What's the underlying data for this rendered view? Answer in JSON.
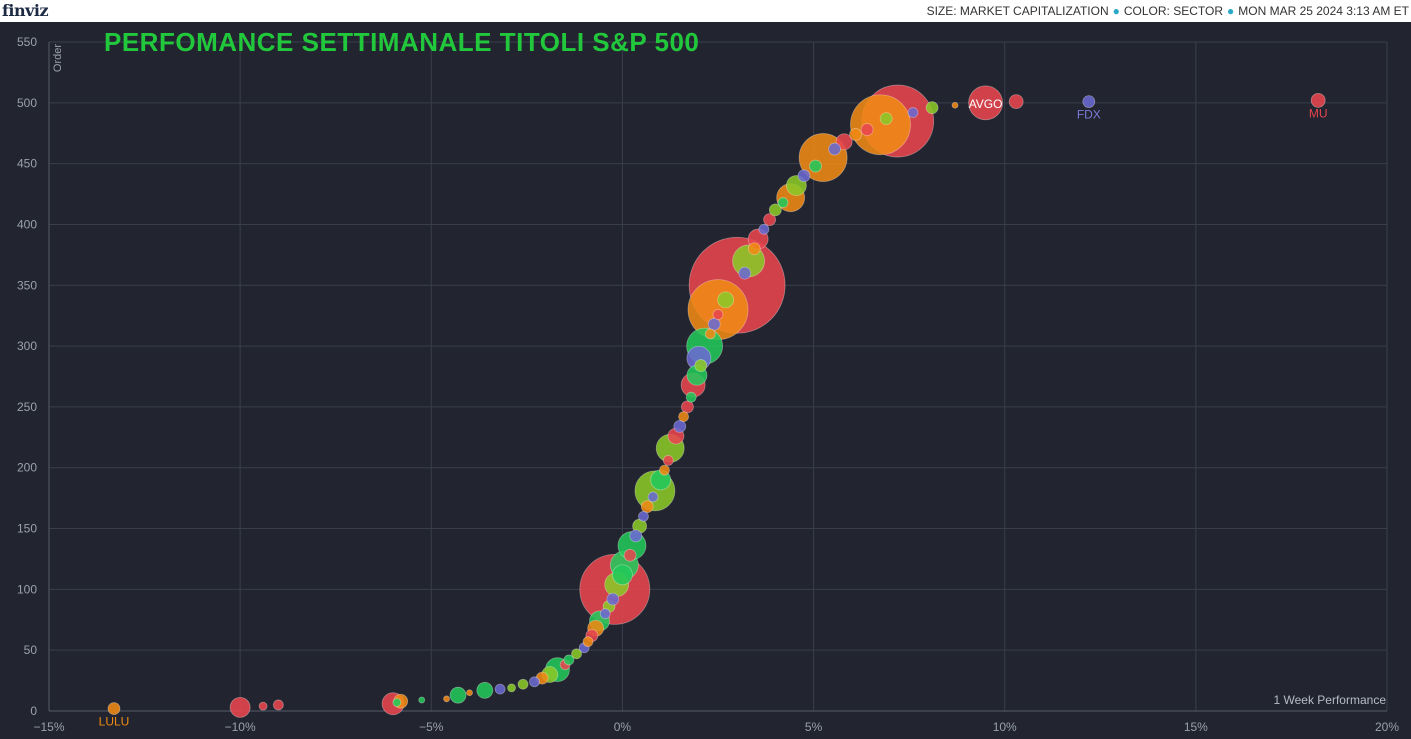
{
  "header": {
    "logo": "finviz",
    "size_label": "SIZE: MARKET CAPITALIZATION",
    "color_label": "COLOR: SECTOR",
    "timestamp": "MON MAR 25 2024 3:13 AM ET"
  },
  "colors": {
    "background": "#22252f",
    "grid": "#3a3e4c",
    "title": "#22c83c",
    "technology": "#e8454f",
    "consumer": "#f08a14",
    "industrials": "#6a6ad2",
    "healthcare": "#22c85a",
    "financial": "#8ac828"
  },
  "chart_data": {
    "type": "scatter",
    "title": "PERFOMANCE SETTIMANALE TITOLI S&P 500",
    "xlabel": "1 Week Performance",
    "ylabel": "Order",
    "xlim": [
      -15,
      20
    ],
    "ylim": [
      0,
      550
    ],
    "xticks": [
      "−15%",
      "−10%",
      "−5%",
      "0%",
      "5%",
      "10%",
      "15%",
      "20%"
    ],
    "yticks": [
      "0",
      "50",
      "100",
      "150",
      "200",
      "250",
      "300",
      "350",
      "400",
      "450",
      "500",
      "550"
    ],
    "grid": true,
    "labeled_points": [
      {
        "ticker": "LULU",
        "x": -13.3,
        "y": 2
      },
      {
        "ticker": "AVGO",
        "x": 9.5,
        "y": 500
      },
      {
        "ticker": "FDX",
        "x": 12.2,
        "y": 501
      },
      {
        "ticker": "MU",
        "x": 18.2,
        "y": 502
      }
    ],
    "points": [
      {
        "x": -13.3,
        "y": 2,
        "s": 6,
        "c": "consumer"
      },
      {
        "x": -10.0,
        "y": 3,
        "s": 10,
        "c": "technology"
      },
      {
        "x": -9.4,
        "y": 4,
        "s": 4,
        "c": "technology"
      },
      {
        "x": -9.0,
        "y": 5,
        "s": 5,
        "c": "technology"
      },
      {
        "x": -6.0,
        "y": 6,
        "s": 11,
        "c": "technology"
      },
      {
        "x": -5.8,
        "y": 8,
        "s": 7,
        "c": "consumer"
      },
      {
        "x": -5.9,
        "y": 7,
        "s": 4,
        "c": "healthcare"
      },
      {
        "x": -5.25,
        "y": 9,
        "s": 3,
        "c": "healthcare"
      },
      {
        "x": -4.6,
        "y": 10,
        "s": 3,
        "c": "consumer"
      },
      {
        "x": -4.3,
        "y": 13,
        "s": 8,
        "c": "healthcare"
      },
      {
        "x": -4.0,
        "y": 15,
        "s": 3,
        "c": "consumer"
      },
      {
        "x": -3.6,
        "y": 17,
        "s": 8,
        "c": "healthcare"
      },
      {
        "x": -3.2,
        "y": 18,
        "s": 5,
        "c": "industrials"
      },
      {
        "x": -2.9,
        "y": 19,
        "s": 4,
        "c": "financial"
      },
      {
        "x": -2.6,
        "y": 22,
        "s": 5,
        "c": "financial"
      },
      {
        "x": -2.3,
        "y": 24,
        "s": 5,
        "c": "industrials"
      },
      {
        "x": -2.1,
        "y": 27,
        "s": 6,
        "c": "consumer"
      },
      {
        "x": -1.9,
        "y": 30,
        "s": 8,
        "c": "financial"
      },
      {
        "x": -1.7,
        "y": 34,
        "s": 12,
        "c": "healthcare"
      },
      {
        "x": -1.5,
        "y": 38,
        "s": 5,
        "c": "technology"
      },
      {
        "x": -1.4,
        "y": 42,
        "s": 5,
        "c": "healthcare"
      },
      {
        "x": -1.2,
        "y": 47,
        "s": 5,
        "c": "financial"
      },
      {
        "x": -1.0,
        "y": 52,
        "s": 5,
        "c": "industrials"
      },
      {
        "x": -0.9,
        "y": 57,
        "s": 5,
        "c": "consumer"
      },
      {
        "x": -0.8,
        "y": 62,
        "s": 6,
        "c": "technology"
      },
      {
        "x": -0.7,
        "y": 68,
        "s": 8,
        "c": "consumer"
      },
      {
        "x": -0.6,
        "y": 74,
        "s": 10,
        "c": "healthcare"
      },
      {
        "x": -0.45,
        "y": 80,
        "s": 5,
        "c": "industrials"
      },
      {
        "x": -0.35,
        "y": 86,
        "s": 6,
        "c": "financial"
      },
      {
        "x": -0.25,
        "y": 92,
        "s": 6,
        "c": "industrials"
      },
      {
        "x": -0.2,
        "y": 100,
        "s": 35,
        "c": "technology"
      },
      {
        "x": -0.15,
        "y": 104,
        "s": 12,
        "c": "financial"
      },
      {
        "x": 0.0,
        "y": 112,
        "s": 10,
        "c": "healthcare"
      },
      {
        "x": 0.05,
        "y": 120,
        "s": 14,
        "c": "healthcare"
      },
      {
        "x": 0.2,
        "y": 128,
        "s": 6,
        "c": "technology"
      },
      {
        "x": 0.25,
        "y": 136,
        "s": 14,
        "c": "healthcare"
      },
      {
        "x": 0.35,
        "y": 144,
        "s": 6,
        "c": "industrials"
      },
      {
        "x": 0.45,
        "y": 152,
        "s": 7,
        "c": "financial"
      },
      {
        "x": 0.55,
        "y": 160,
        "s": 5,
        "c": "industrials"
      },
      {
        "x": 0.65,
        "y": 168,
        "s": 6,
        "c": "consumer"
      },
      {
        "x": 0.8,
        "y": 176,
        "s": 5,
        "c": "industrials"
      },
      {
        "x": 0.85,
        "y": 181,
        "s": 20,
        "c": "financial"
      },
      {
        "x": 1.0,
        "y": 190,
        "s": 10,
        "c": "healthcare"
      },
      {
        "x": 1.1,
        "y": 198,
        "s": 5,
        "c": "consumer"
      },
      {
        "x": 1.2,
        "y": 206,
        "s": 5,
        "c": "technology"
      },
      {
        "x": 1.25,
        "y": 216,
        "s": 14,
        "c": "financial"
      },
      {
        "x": 1.4,
        "y": 226,
        "s": 8,
        "c": "technology"
      },
      {
        "x": 1.5,
        "y": 234,
        "s": 6,
        "c": "industrials"
      },
      {
        "x": 1.6,
        "y": 242,
        "s": 5,
        "c": "consumer"
      },
      {
        "x": 1.7,
        "y": 250,
        "s": 6,
        "c": "technology"
      },
      {
        "x": 1.8,
        "y": 258,
        "s": 5,
        "c": "healthcare"
      },
      {
        "x": 1.85,
        "y": 268,
        "s": 12,
        "c": "technology"
      },
      {
        "x": 1.95,
        "y": 276,
        "s": 10,
        "c": "healthcare"
      },
      {
        "x": 2.05,
        "y": 284,
        "s": 6,
        "c": "financial"
      },
      {
        "x": 2.0,
        "y": 290,
        "s": 12,
        "c": "industrials"
      },
      {
        "x": 2.15,
        "y": 300,
        "s": 18,
        "c": "healthcare"
      },
      {
        "x": 2.3,
        "y": 310,
        "s": 5,
        "c": "consumer"
      },
      {
        "x": 2.4,
        "y": 318,
        "s": 6,
        "c": "industrials"
      },
      {
        "x": 2.5,
        "y": 326,
        "s": 5,
        "c": "technology"
      },
      {
        "x": 2.5,
        "y": 330,
        "s": 30,
        "c": "consumer"
      },
      {
        "x": 2.7,
        "y": 338,
        "s": 8,
        "c": "financial"
      },
      {
        "x": 3.0,
        "y": 350,
        "s": 48,
        "c": "technology"
      },
      {
        "x": 3.2,
        "y": 360,
        "s": 6,
        "c": "industrials"
      },
      {
        "x": 3.3,
        "y": 370,
        "s": 16,
        "c": "financial"
      },
      {
        "x": 3.45,
        "y": 380,
        "s": 6,
        "c": "consumer"
      },
      {
        "x": 3.55,
        "y": 388,
        "s": 10,
        "c": "technology"
      },
      {
        "x": 3.7,
        "y": 396,
        "s": 5,
        "c": "industrials"
      },
      {
        "x": 3.85,
        "y": 404,
        "s": 6,
        "c": "technology"
      },
      {
        "x": 4.0,
        "y": 412,
        "s": 6,
        "c": "financial"
      },
      {
        "x": 4.2,
        "y": 418,
        "s": 5,
        "c": "healthcare"
      },
      {
        "x": 4.4,
        "y": 422,
        "s": 14,
        "c": "consumer"
      },
      {
        "x": 4.55,
        "y": 432,
        "s": 10,
        "c": "financial"
      },
      {
        "x": 4.75,
        "y": 440,
        "s": 6,
        "c": "industrials"
      },
      {
        "x": 5.05,
        "y": 448,
        "s": 6,
        "c": "healthcare"
      },
      {
        "x": 5.25,
        "y": 455,
        "s": 24,
        "c": "consumer"
      },
      {
        "x": 5.55,
        "y": 462,
        "s": 6,
        "c": "industrials"
      },
      {
        "x": 5.8,
        "y": 468,
        "s": 8,
        "c": "technology"
      },
      {
        "x": 6.1,
        "y": 474,
        "s": 6,
        "c": "consumer"
      },
      {
        "x": 6.4,
        "y": 478,
        "s": 6,
        "c": "technology"
      },
      {
        "x": 6.75,
        "y": 482,
        "s": 30,
        "c": "consumer"
      },
      {
        "x": 7.2,
        "y": 485,
        "s": 36,
        "c": "technology"
      },
      {
        "x": 6.9,
        "y": 487,
        "s": 6,
        "c": "financial"
      },
      {
        "x": 7.6,
        "y": 492,
        "s": 5,
        "c": "industrials"
      },
      {
        "x": 8.1,
        "y": 496,
        "s": 6,
        "c": "financial"
      },
      {
        "x": 8.7,
        "y": 498,
        "s": 3,
        "c": "consumer"
      },
      {
        "x": 9.5,
        "y": 500,
        "s": 17,
        "c": "technology"
      },
      {
        "x": 10.3,
        "y": 501,
        "s": 7,
        "c": "technology"
      },
      {
        "x": 12.2,
        "y": 501,
        "s": 6,
        "c": "industrials"
      },
      {
        "x": 18.2,
        "y": 502,
        "s": 7,
        "c": "technology"
      }
    ]
  }
}
